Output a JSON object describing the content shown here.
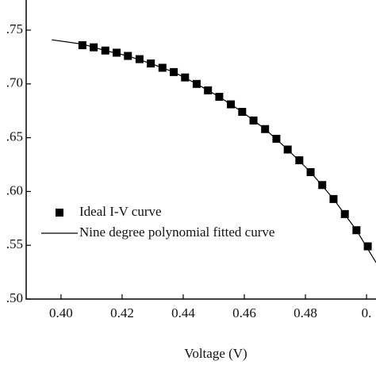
{
  "chart_data": {
    "type": "scatter",
    "xlabel": "Voltage (V)",
    "xlim": [
      0.3886,
      0.5031
    ],
    "ylim": [
      0.5,
      0.778
    ],
    "xticks": [
      {
        "value": 0.4,
        "label": "0.40"
      },
      {
        "value": 0.42,
        "label": "0.42"
      },
      {
        "value": 0.44,
        "label": "0.44"
      },
      {
        "value": 0.46,
        "label": "0.46"
      },
      {
        "value": 0.48,
        "label": "0.48"
      },
      {
        "value": 0.5,
        "label": "0."
      }
    ],
    "yticks": [
      {
        "value": 0.5,
        "label": ".50"
      },
      {
        "value": 0.55,
        "label": ".55"
      },
      {
        "value": 0.6,
        "label": ".60"
      },
      {
        "value": 0.65,
        "label": ".65"
      },
      {
        "value": 0.7,
        "label": ".70"
      },
      {
        "value": 0.75,
        "label": ".75"
      }
    ],
    "legend": "middle left",
    "series": [
      {
        "name": "Ideal I-V curve",
        "color": "#000000",
        "marker": "square",
        "x": [
          0.407,
          0.4107,
          0.4145,
          0.4182,
          0.4219,
          0.4257,
          0.4294,
          0.4332,
          0.4369,
          0.4406,
          0.4444,
          0.4481,
          0.4518,
          0.4556,
          0.4593,
          0.463,
          0.4668,
          0.4705,
          0.4742,
          0.478,
          0.4817,
          0.4855,
          0.4892,
          0.4929,
          0.4967,
          0.5004
        ],
        "values": [
          0.736,
          0.734,
          0.731,
          0.729,
          0.726,
          0.723,
          0.719,
          0.715,
          0.711,
          0.706,
          0.7,
          0.694,
          0.688,
          0.681,
          0.674,
          0.666,
          0.658,
          0.649,
          0.639,
          0.629,
          0.618,
          0.606,
          0.593,
          0.579,
          0.564,
          0.549
        ]
      },
      {
        "name": "Nine degree polynomial fitted curve",
        "color": "#000000",
        "marker": "line",
        "x": [
          0.397,
          0.407,
          0.4145,
          0.4219,
          0.4294,
          0.4369,
          0.4444,
          0.4518,
          0.4593,
          0.4668,
          0.4742,
          0.4817,
          0.4892,
          0.4967,
          0.5031
        ],
        "values": [
          0.741,
          0.737,
          0.731,
          0.726,
          0.719,
          0.711,
          0.7,
          0.688,
          0.674,
          0.658,
          0.639,
          0.618,
          0.593,
          0.564,
          0.534
        ]
      }
    ]
  }
}
